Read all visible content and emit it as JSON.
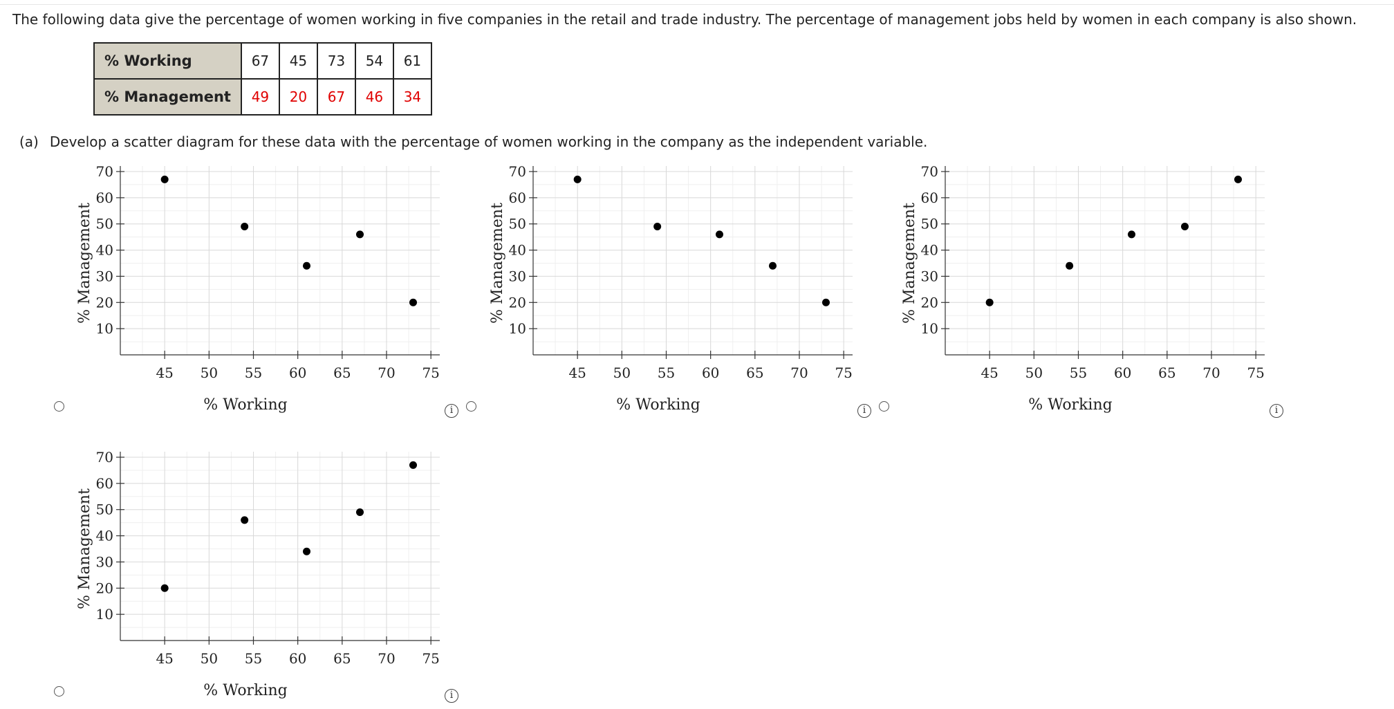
{
  "intro_text": "The following data give the percentage of women working in five companies in the retail and trade industry. The percentage of management jobs held by women in each company is also shown.",
  "table": {
    "rows": [
      {
        "header": "% Working",
        "values": [
          "67",
          "45",
          "73",
          "54",
          "61"
        ]
      },
      {
        "header": "% Management",
        "values": [
          "49",
          "20",
          "67",
          "46",
          "34"
        ]
      }
    ]
  },
  "question": {
    "letter": "(a)",
    "text": "Develop a scatter diagram for these data with the percentage of women working in the company as the independent variable."
  },
  "info_glyph": "i",
  "colors": {
    "table_header_bg": "#d5d1c4",
    "management_values": "#e00000"
  },
  "icons": {
    "radio": "radio-button-icon",
    "info": "info-circle-icon"
  },
  "chart_data": [
    {
      "type": "scatter",
      "xlabel": "% Working",
      "ylabel": "% Management",
      "xlim": [
        40,
        76
      ],
      "ylim": [
        0,
        70
      ],
      "xticks": [
        45,
        50,
        55,
        60,
        65,
        70,
        75
      ],
      "yticks": [
        10,
        20,
        30,
        40,
        50,
        60,
        70
      ],
      "grid": true,
      "points": [
        {
          "x": 45,
          "y": 67
        },
        {
          "x": 54,
          "y": 49
        },
        {
          "x": 61,
          "y": 34
        },
        {
          "x": 67,
          "y": 46
        },
        {
          "x": 73,
          "y": 20
        }
      ]
    },
    {
      "type": "scatter",
      "xlabel": "% Working",
      "ylabel": "% Management",
      "xlim": [
        40,
        76
      ],
      "ylim": [
        0,
        70
      ],
      "xticks": [
        45,
        50,
        55,
        60,
        65,
        70,
        75
      ],
      "yticks": [
        10,
        20,
        30,
        40,
        50,
        60,
        70
      ],
      "grid": true,
      "points": [
        {
          "x": 45,
          "y": 67
        },
        {
          "x": 54,
          "y": 49
        },
        {
          "x": 61,
          "y": 46
        },
        {
          "x": 67,
          "y": 34
        },
        {
          "x": 73,
          "y": 20
        }
      ]
    },
    {
      "type": "scatter",
      "xlabel": "% Working",
      "ylabel": "% Management",
      "xlim": [
        40,
        76
      ],
      "ylim": [
        0,
        70
      ],
      "xticks": [
        45,
        50,
        55,
        60,
        65,
        70,
        75
      ],
      "yticks": [
        10,
        20,
        30,
        40,
        50,
        60,
        70
      ],
      "grid": true,
      "points": [
        {
          "x": 45,
          "y": 20
        },
        {
          "x": 54,
          "y": 34
        },
        {
          "x": 61,
          "y": 46
        },
        {
          "x": 67,
          "y": 49
        },
        {
          "x": 73,
          "y": 67
        }
      ]
    },
    {
      "type": "scatter",
      "xlabel": "% Working",
      "ylabel": "% Management",
      "xlim": [
        40,
        76
      ],
      "ylim": [
        0,
        70
      ],
      "xticks": [
        45,
        50,
        55,
        60,
        65,
        70,
        75
      ],
      "yticks": [
        10,
        20,
        30,
        40,
        50,
        60,
        70
      ],
      "grid": true,
      "points": [
        {
          "x": 45,
          "y": 20
        },
        {
          "x": 54,
          "y": 46
        },
        {
          "x": 61,
          "y": 34
        },
        {
          "x": 67,
          "y": 49
        },
        {
          "x": 73,
          "y": 67
        }
      ]
    }
  ]
}
